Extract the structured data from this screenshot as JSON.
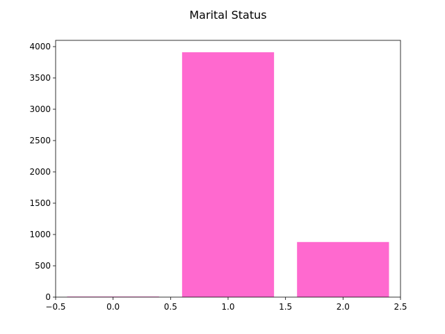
{
  "chart_data": {
    "type": "bar",
    "title": "Marital Status",
    "xlabel": "",
    "ylabel": "",
    "x": [
      0,
      1,
      2
    ],
    "values": [
      9,
      3910,
      880
    ],
    "bar_width": 0.8,
    "xlim": [
      -0.5,
      2.5
    ],
    "ylim": [
      0,
      4100
    ],
    "xticks": [
      -0.5,
      0.0,
      0.5,
      1.0,
      1.5,
      2.0,
      2.5
    ],
    "xtick_labels": [
      "−0.5",
      "0.0",
      "0.5",
      "1.0",
      "1.5",
      "2.0",
      "2.5"
    ],
    "yticks": [
      0,
      500,
      1000,
      1500,
      2000,
      2500,
      3000,
      3500,
      4000
    ],
    "ytick_labels": [
      "0",
      "500",
      "1000",
      "1500",
      "2000",
      "2500",
      "3000",
      "3500",
      "4000"
    ],
    "grid": false,
    "bar_color": "#ff69cf"
  }
}
